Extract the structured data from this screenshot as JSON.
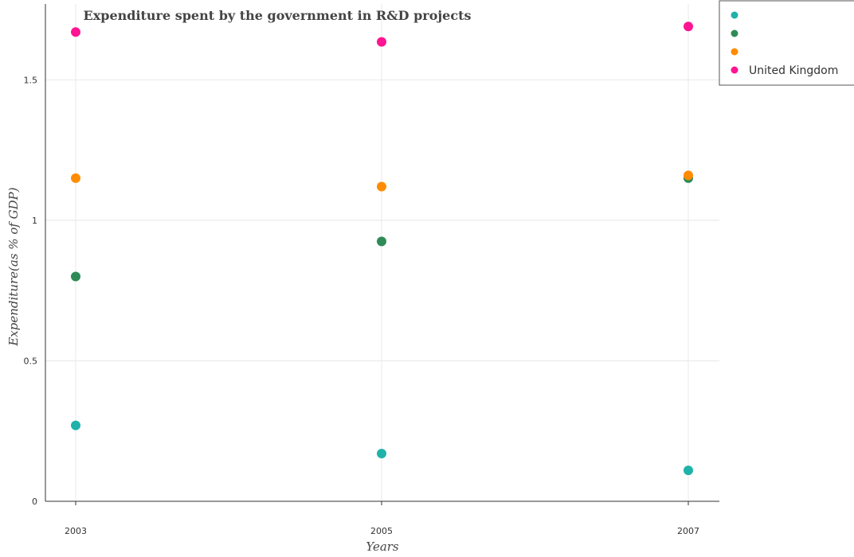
{
  "chart_data": {
    "type": "scatter",
    "title": "Expenditure spent by the government in R&D projects",
    "xlabel": "Years",
    "ylabel": "Expenditure(as % of GDP)",
    "x": [
      "2003",
      "2005",
      "2007"
    ],
    "x_tick_labels": [
      "2003",
      "2005",
      "2007"
    ],
    "ylim": [
      0,
      1.77
    ],
    "y_ticks": [
      0,
      0.5,
      1,
      1.5
    ],
    "y_tick_labels": [
      "0",
      "0.5",
      "1",
      "1.5"
    ],
    "grid": true,
    "legend_position": "top-right",
    "series": [
      {
        "name": "",
        "color": "#20b2aa",
        "values": [
          0.27,
          0.17,
          0.11
        ]
      },
      {
        "name": "",
        "color": "#2e8b57",
        "values": [
          0.8,
          0.925,
          1.15
        ]
      },
      {
        "name": "",
        "color": "#ff8c00",
        "values": [
          1.15,
          1.12,
          1.16
        ]
      },
      {
        "name": "United Kingdom",
        "color": "#ff1493",
        "values": [
          1.67,
          1.635,
          1.69
        ]
      }
    ]
  }
}
